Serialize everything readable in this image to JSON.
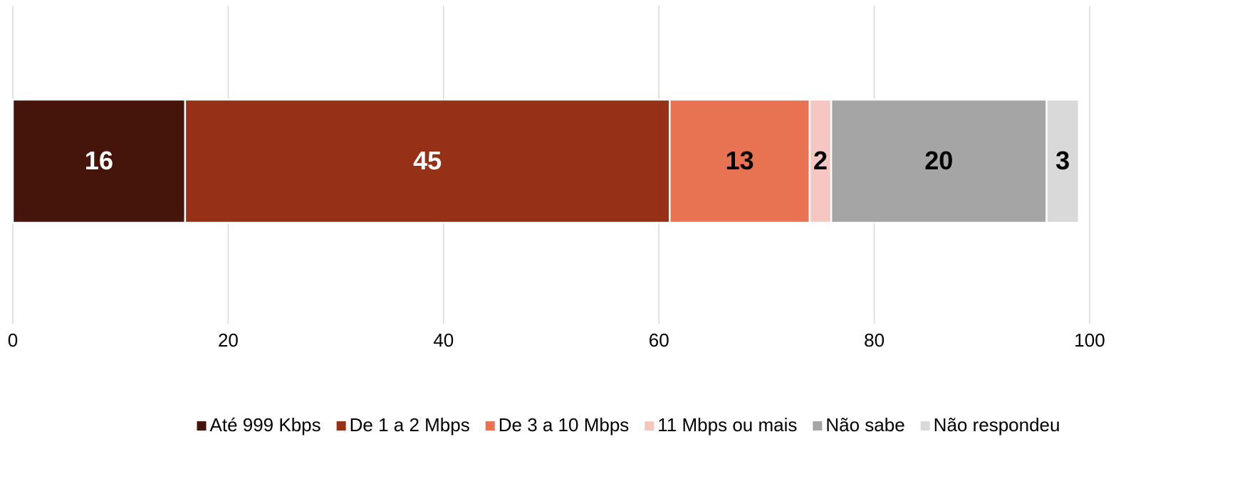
{
  "chart_data": {
    "type": "stacked-bar-horizontal",
    "categories": [
      null
    ],
    "series": [
      {
        "name": "Até 999 Kbps",
        "color": "#45150b",
        "values": [
          16
        ]
      },
      {
        "name": "De 1 a 2 Mbps",
        "color": "#963016",
        "values": [
          45
        ]
      },
      {
        "name": "De 3 a 10 Mbps",
        "color": "#e87352",
        "values": [
          13
        ]
      },
      {
        "name": "11 Mbps ou mais",
        "color": "#f6c6c0",
        "values": [
          2
        ]
      },
      {
        "name": "Não sabe",
        "color": "#a5a5a5",
        "values": [
          20
        ]
      },
      {
        "name": "Não respondeu",
        "color": "#d9d9d9",
        "values": [
          3
        ]
      }
    ],
    "xlim": [
      0,
      100
    ],
    "xticks": [
      0,
      20,
      40,
      60,
      80,
      100
    ],
    "grid": true,
    "legend": "bottom"
  }
}
